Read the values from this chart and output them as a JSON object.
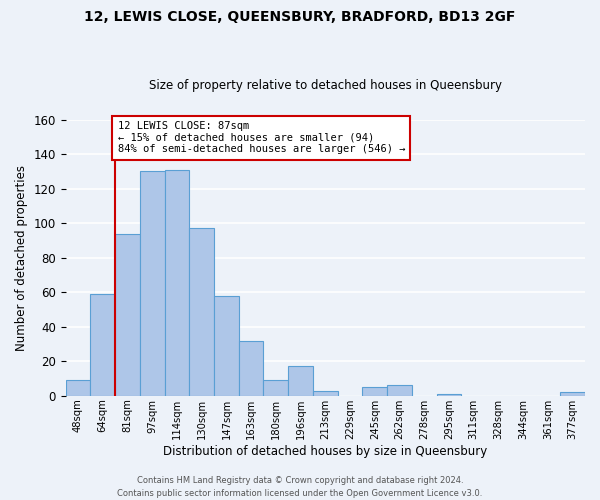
{
  "title": "12, LEWIS CLOSE, QUEENSBURY, BRADFORD, BD13 2GF",
  "subtitle": "Size of property relative to detached houses in Queensbury",
  "xlabel": "Distribution of detached houses by size in Queensbury",
  "ylabel": "Number of detached properties",
  "bin_labels": [
    "48sqm",
    "64sqm",
    "81sqm",
    "97sqm",
    "114sqm",
    "130sqm",
    "147sqm",
    "163sqm",
    "180sqm",
    "196sqm",
    "213sqm",
    "229sqm",
    "245sqm",
    "262sqm",
    "278sqm",
    "295sqm",
    "311sqm",
    "328sqm",
    "344sqm",
    "361sqm",
    "377sqm"
  ],
  "bar_heights": [
    9,
    59,
    94,
    130,
    131,
    97,
    58,
    32,
    9,
    17,
    3,
    0,
    5,
    6,
    0,
    1,
    0,
    0,
    0,
    0,
    2
  ],
  "bar_color": "#aec6e8",
  "bar_edge_color": "#5a9fd4",
  "reference_line_index": 2,
  "reference_line_color": "#cc0000",
  "annotation_text": "12 LEWIS CLOSE: 87sqm\n← 15% of detached houses are smaller (94)\n84% of semi-detached houses are larger (546) →",
  "annotation_box_color": "#ffffff",
  "annotation_box_edge_color": "#cc0000",
  "ylim": [
    0,
    160
  ],
  "footer_line1": "Contains HM Land Registry data © Crown copyright and database right 2024.",
  "footer_line2": "Contains public sector information licensed under the Open Government Licence v3.0.",
  "background_color": "#edf2f9",
  "grid_color": "#ffffff"
}
